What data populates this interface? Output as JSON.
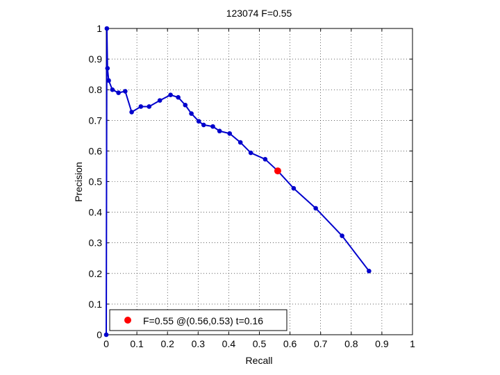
{
  "chart_data": {
    "type": "line",
    "title": "123074 F=0.55",
    "xlabel": "Recall",
    "ylabel": "Precision",
    "xlim": [
      0,
      1
    ],
    "ylim": [
      0,
      1
    ],
    "xticks": [
      0,
      0.1,
      0.2,
      0.3,
      0.4,
      0.5,
      0.6,
      0.7,
      0.8,
      0.9,
      1
    ],
    "yticks": [
      0,
      0.1,
      0.2,
      0.3,
      0.4,
      0.5,
      0.6,
      0.7,
      0.8,
      0.9,
      1
    ],
    "xtick_labels": [
      "0",
      "0.1",
      "0.2",
      "0.3",
      "0.4",
      "0.5",
      "0.6",
      "0.7",
      "0.8",
      "0.9",
      "1"
    ],
    "ytick_labels": [
      "0",
      "0.1",
      "0.2",
      "0.3",
      "0.4",
      "0.5",
      "0.6",
      "0.7",
      "0.8",
      "0.9",
      "1"
    ],
    "grid": true,
    "grid_style": "dotted",
    "series": [
      {
        "color": "#0000cc",
        "x": [
          0,
          0.002,
          0.004,
          0.008,
          0.02,
          0.04,
          0.062,
          0.083,
          0.113,
          0.14,
          0.175,
          0.21,
          0.235,
          0.258,
          0.278,
          0.302,
          0.318,
          0.348,
          0.37,
          0.403,
          0.438,
          0.472,
          0.519,
          0.56,
          0.612,
          0.684,
          0.77,
          0.858
        ],
        "y": [
          0,
          1,
          0.87,
          0.83,
          0.8,
          0.79,
          0.795,
          0.727,
          0.745,
          0.745,
          0.765,
          0.783,
          0.775,
          0.75,
          0.722,
          0.697,
          0.685,
          0.68,
          0.665,
          0.657,
          0.628,
          0.594,
          0.573,
          0.535,
          0.478,
          0.413,
          0.323,
          0.208
        ]
      }
    ],
    "highlight": {
      "x": 0.56,
      "y": 0.535,
      "color": "#ff0000"
    },
    "legend": {
      "position": "bottom-left",
      "text": "F=0.55 @(0.56,0.53) t=0.16",
      "marker_color": "#ff0000"
    }
  }
}
